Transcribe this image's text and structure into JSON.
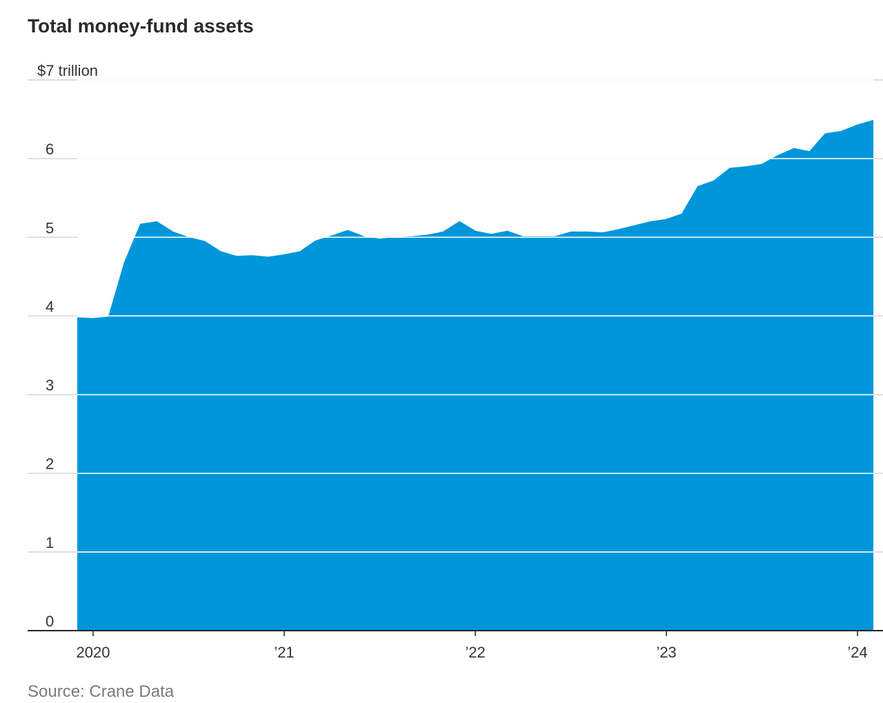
{
  "chart_data": {
    "type": "area",
    "title": "Total money-fund assets",
    "source": "Source: Crane Data",
    "ylabel": "",
    "ylim": [
      0,
      7
    ],
    "y_ticks": [
      {
        "value": 0,
        "label": "0"
      },
      {
        "value": 1,
        "label": "1"
      },
      {
        "value": 2,
        "label": "2"
      },
      {
        "value": 3,
        "label": "3"
      },
      {
        "value": 4,
        "label": "4"
      },
      {
        "value": 5,
        "label": "5"
      },
      {
        "value": 6,
        "label": "6"
      },
      {
        "value": 7,
        "label": "$7 trillion"
      }
    ],
    "x_ticks": [
      {
        "value": 2020.0,
        "label": "2020"
      },
      {
        "value": 2021.0,
        "label": "’21"
      },
      {
        "value": 2022.0,
        "label": "’22"
      },
      {
        "value": 2023.0,
        "label": "’23"
      },
      {
        "value": 2024.0,
        "label": "’24"
      }
    ],
    "xlim": [
      2019.66,
      2024.1
    ],
    "grid": true,
    "color": "#0096d9",
    "series": [
      {
        "x": [
          2019.917,
          2020.0,
          2020.083,
          2020.167,
          2020.25,
          2020.333,
          2020.417,
          2020.5,
          2020.583,
          2020.667,
          2020.75,
          2020.833,
          2020.917,
          2021.0,
          2021.083,
          2021.167,
          2021.25,
          2021.333,
          2021.417,
          2021.5,
          2021.583,
          2021.667,
          2021.75,
          2021.833,
          2021.917,
          2022.0,
          2022.083,
          2022.167,
          2022.25,
          2022.333,
          2022.417,
          2022.5,
          2022.583,
          2022.667,
          2022.75,
          2022.833,
          2022.917,
          2023.0,
          2023.083,
          2023.167,
          2023.25,
          2023.333,
          2023.417,
          2023.5,
          2023.583,
          2023.667,
          2023.75,
          2023.833,
          2023.917,
          2024.0,
          2024.083
        ],
        "y": [
          3.97,
          3.96,
          3.98,
          4.68,
          5.16,
          5.19,
          5.06,
          4.99,
          4.94,
          4.81,
          4.75,
          4.76,
          4.74,
          4.77,
          4.81,
          4.95,
          5.01,
          5.08,
          5.0,
          4.97,
          4.99,
          5.0,
          5.02,
          5.06,
          5.19,
          5.07,
          5.03,
          5.07,
          5.0,
          5.0,
          5.0,
          5.06,
          5.06,
          5.05,
          5.09,
          5.14,
          5.19,
          5.22,
          5.29,
          5.64,
          5.71,
          5.87,
          5.89,
          5.92,
          6.03,
          6.12,
          6.08,
          6.31,
          6.34,
          6.42,
          6.48
        ]
      }
    ]
  }
}
